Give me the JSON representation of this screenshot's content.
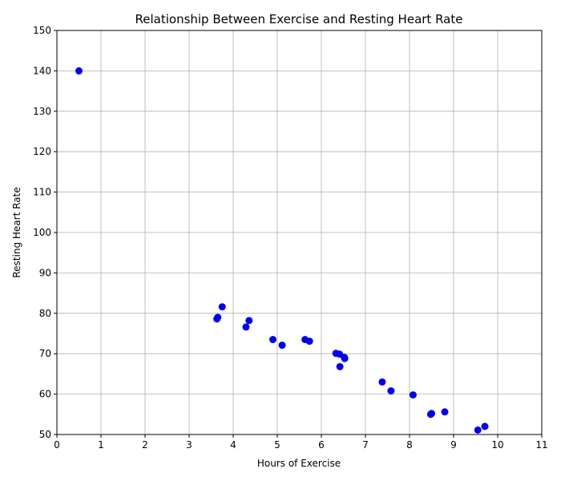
{
  "chart_data": {
    "type": "scatter",
    "title": "Relationship Between Exercise and Resting Heart Rate",
    "xlabel": "Hours of Exercise",
    "ylabel": "Resting Heart Rate",
    "xlim": [
      0,
      11
    ],
    "ylim": [
      50,
      150
    ],
    "xticks": [
      0,
      1,
      2,
      3,
      4,
      5,
      6,
      7,
      8,
      9,
      10,
      11
    ],
    "yticks": [
      50,
      60,
      70,
      80,
      90,
      100,
      110,
      120,
      130,
      140,
      150
    ],
    "grid": true,
    "point_color": "#0000ee",
    "series": [
      {
        "points": [
          {
            "x": 0.5,
            "y": 140.0
          },
          {
            "x": 3.63,
            "y": 78.6
          },
          {
            "x": 3.65,
            "y": 79.0
          },
          {
            "x": 3.75,
            "y": 81.6
          },
          {
            "x": 4.29,
            "y": 76.6
          },
          {
            "x": 4.36,
            "y": 78.2
          },
          {
            "x": 4.9,
            "y": 73.5
          },
          {
            "x": 5.11,
            "y": 72.1
          },
          {
            "x": 5.63,
            "y": 73.5
          },
          {
            "x": 5.73,
            "y": 73.1
          },
          {
            "x": 6.33,
            "y": 70.1
          },
          {
            "x": 6.41,
            "y": 69.9
          },
          {
            "x": 6.42,
            "y": 66.8
          },
          {
            "x": 6.52,
            "y": 69.1
          },
          {
            "x": 6.53,
            "y": 68.8
          },
          {
            "x": 7.38,
            "y": 63.0
          },
          {
            "x": 7.58,
            "y": 60.8
          },
          {
            "x": 8.08,
            "y": 59.8
          },
          {
            "x": 8.48,
            "y": 55.0
          },
          {
            "x": 8.5,
            "y": 55.2
          },
          {
            "x": 8.8,
            "y": 55.6
          },
          {
            "x": 9.55,
            "y": 51.1
          },
          {
            "x": 9.71,
            "y": 52.0
          }
        ]
      }
    ]
  }
}
